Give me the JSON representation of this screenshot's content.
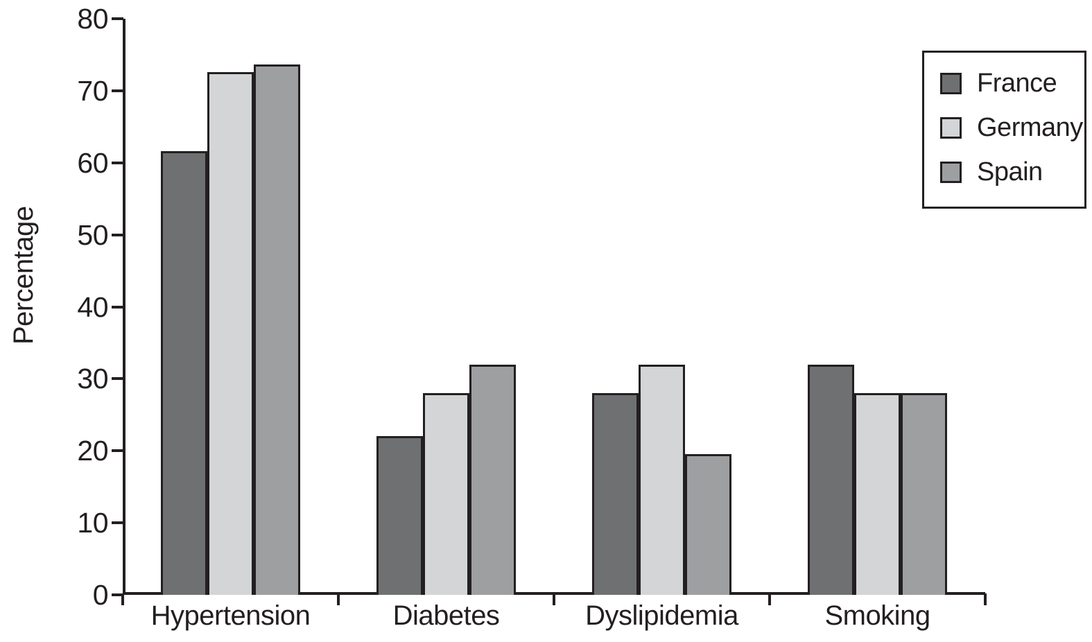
{
  "chart_data": {
    "type": "bar",
    "title": "",
    "xlabel": "",
    "ylabel": "Percentage",
    "categories": [
      "Hypertension",
      "Diabetes",
      "Dyslipidemia",
      "Smoking"
    ],
    "series": [
      {
        "name": "France",
        "color": "#6e7072",
        "values": [
          61.6,
          22,
          28,
          32
        ]
      },
      {
        "name": "Germany",
        "color": "#d3d5d7",
        "values": [
          72.6,
          28,
          32,
          28
        ]
      },
      {
        "name": "Spain",
        "color": "#9d9fa1",
        "values": [
          73.6,
          32,
          19.5,
          28
        ]
      }
    ],
    "ylim": [
      0,
      80
    ],
    "yticks": [
      0,
      10,
      20,
      30,
      40,
      50,
      60,
      70,
      80
    ],
    "grid": false,
    "legend_position": "top-right",
    "bar_outline_color": "#231f20",
    "axis_color": "#231f20",
    "text_color": "#231f20",
    "background_color": "#ffffff"
  }
}
